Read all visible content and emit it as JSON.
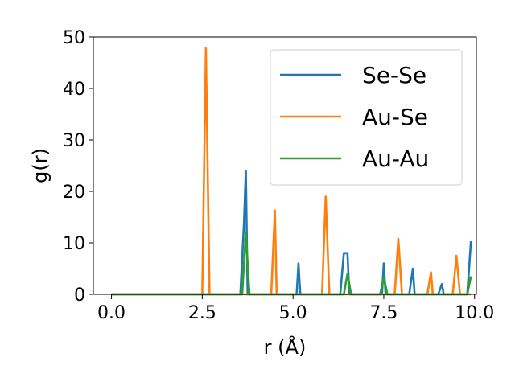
{
  "chart_data": {
    "type": "line",
    "xlabel": "r (Å)",
    "ylabel": "g(r)",
    "xlim": [
      -0.5,
      10.05
    ],
    "ylim": [
      0,
      50
    ],
    "xticks": [
      "0.0",
      "2.5",
      "5.0",
      "7.5",
      "10.0"
    ],
    "xtick_values": [
      0,
      2.5,
      5,
      7.5,
      10
    ],
    "yticks": [
      "0",
      "10",
      "20",
      "30",
      "40",
      "50"
    ],
    "ytick_values": [
      0,
      10,
      20,
      30,
      40,
      50
    ],
    "grid": false,
    "legend_position": "top-right",
    "series": [
      {
        "name": "Se-Se",
        "color": "#1f77b4",
        "points": [
          [
            0,
            0
          ],
          [
            3.55,
            0
          ],
          [
            3.65,
            14
          ],
          [
            3.7,
            24
          ],
          [
            3.75,
            0
          ],
          [
            5.1,
            0
          ],
          [
            5.15,
            6
          ],
          [
            5.2,
            0
          ],
          [
            6.3,
            0
          ],
          [
            6.4,
            8
          ],
          [
            6.5,
            8
          ],
          [
            6.55,
            0
          ],
          [
            7.45,
            0
          ],
          [
            7.5,
            6
          ],
          [
            7.55,
            0
          ],
          [
            8.2,
            0
          ],
          [
            8.3,
            5
          ],
          [
            8.35,
            0
          ],
          [
            9.0,
            0
          ],
          [
            9.1,
            2
          ],
          [
            9.15,
            0
          ],
          [
            9.8,
            0
          ],
          [
            9.9,
            10.3
          ]
        ]
      },
      {
        "name": "Au-Se",
        "color": "#ff7f0e",
        "points": [
          [
            0,
            0
          ],
          [
            2.5,
            0
          ],
          [
            2.6,
            47.8
          ],
          [
            2.7,
            0
          ],
          [
            4.4,
            0
          ],
          [
            4.5,
            16.3
          ],
          [
            4.55,
            0
          ],
          [
            5.8,
            0
          ],
          [
            5.9,
            19
          ],
          [
            6.0,
            0
          ],
          [
            7.8,
            0
          ],
          [
            7.9,
            10.8
          ],
          [
            8.0,
            0
          ],
          [
            8.7,
            0
          ],
          [
            8.8,
            4.3
          ],
          [
            8.85,
            0
          ],
          [
            9.4,
            0
          ],
          [
            9.5,
            7.5
          ],
          [
            9.6,
            0
          ],
          [
            9.9,
            0
          ]
        ]
      },
      {
        "name": "Au-Au",
        "color": "#2ca02c",
        "points": [
          [
            0,
            0
          ],
          [
            3.6,
            0
          ],
          [
            3.7,
            12
          ],
          [
            3.8,
            0
          ],
          [
            6.4,
            0
          ],
          [
            6.5,
            4
          ],
          [
            6.6,
            0
          ],
          [
            7.4,
            0
          ],
          [
            7.5,
            3.3
          ],
          [
            7.6,
            0
          ],
          [
            9.8,
            0
          ],
          [
            9.9,
            3.5
          ]
        ]
      }
    ]
  }
}
